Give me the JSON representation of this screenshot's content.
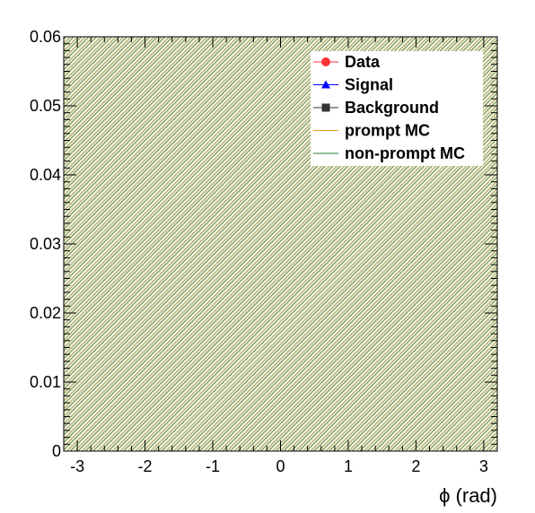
{
  "chart_data": {
    "type": "line",
    "title": "",
    "xlabel": "ϕ (rad)",
    "ylabel": "",
    "xlim": [
      -3.2,
      3.2
    ],
    "ylim": [
      0,
      0.06
    ],
    "x_ticks": [
      -3,
      -2,
      -1,
      0,
      1,
      2,
      3
    ],
    "x_tick_labels": [
      "-3",
      "-2",
      "-1",
      "0",
      "1",
      "2",
      "3"
    ],
    "y_ticks": [
      0,
      0.01,
      0.02,
      0.03,
      0.04,
      0.05,
      0.06
    ],
    "y_tick_labels": [
      "0",
      "0.01",
      "0.02",
      "0.03",
      "0.04",
      "0.05",
      "0.06"
    ],
    "grid": false,
    "legend_position": "top-right",
    "background_fill": "hatched",
    "series": [
      {
        "name": "Data",
        "marker": "circle",
        "color": "#ff3333",
        "values": []
      },
      {
        "name": "Signal",
        "marker": "triangle",
        "color": "#0000ff",
        "values": []
      },
      {
        "name": "Background",
        "marker": "square",
        "color": "#333333",
        "values": []
      },
      {
        "name": "prompt MC",
        "marker": "line",
        "color": "#e8a020",
        "values": []
      },
      {
        "name": "non-prompt MC",
        "marker": "line",
        "color": "#2e7d32",
        "values": []
      }
    ],
    "hatch_colors": {
      "primary": "#8a8a3c",
      "secondary": "#3a6a2a"
    }
  }
}
